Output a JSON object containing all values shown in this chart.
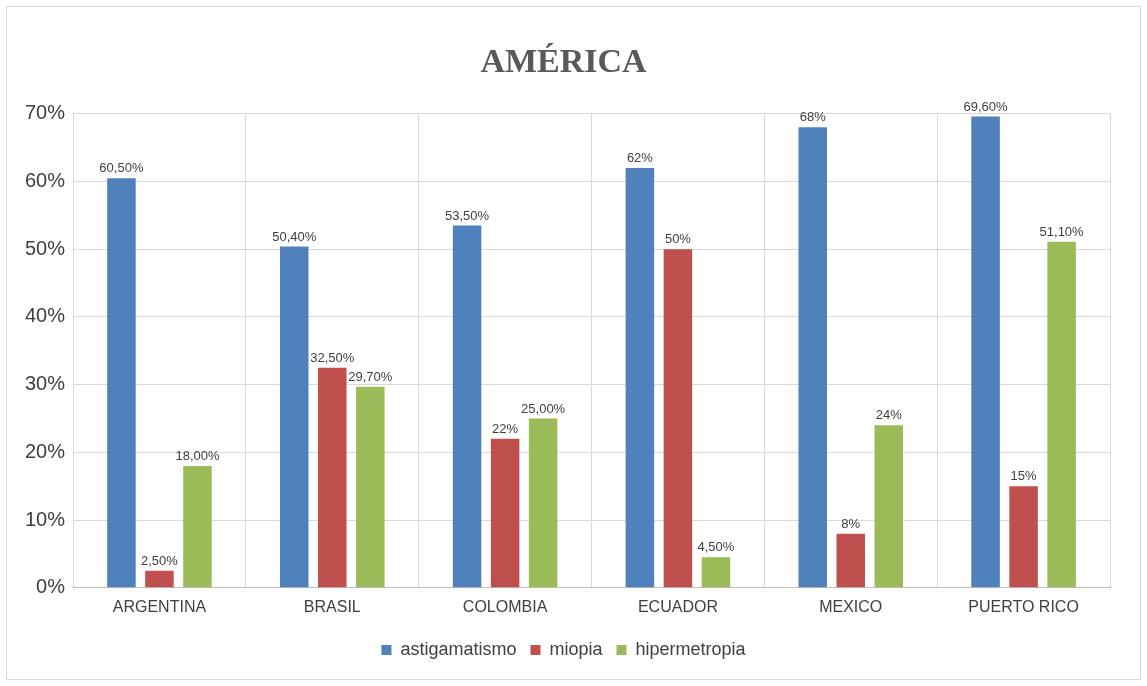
{
  "chart_data": {
    "type": "bar",
    "title": "AMÉRICA",
    "categories": [
      "ARGENTINA",
      "BRASIL",
      "COLOMBIA",
      "ECUADOR",
      "MEXICO",
      "PUERTO RICO"
    ],
    "series": [
      {
        "name": "astigamatismo",
        "color": "#4f81bd",
        "values": [
          60.5,
          50.4,
          53.5,
          62,
          68,
          69.6
        ],
        "value_labels": [
          "60,50%",
          "50,40%",
          "53,50%",
          "62%",
          "68%",
          "69,60%"
        ]
      },
      {
        "name": "miopia",
        "color": "#c0504d",
        "values": [
          2.5,
          32.5,
          22,
          50,
          8,
          15
        ],
        "value_labels": [
          "2,50%",
          "32,50%",
          "22%",
          "50%",
          "8%",
          "15%"
        ]
      },
      {
        "name": "hipermetropia",
        "color": "#9bbb59",
        "values": [
          18,
          29.7,
          25,
          4.5,
          24,
          51.1
        ],
        "value_labels": [
          "18,00%",
          "29,70%",
          "25,00%",
          "4,50%",
          "24%",
          "51,10%"
        ]
      }
    ],
    "ylim": [
      0,
      70
    ],
    "yticks": [
      {
        "value": 0,
        "label": "0%"
      },
      {
        "value": 10,
        "label": "10%"
      },
      {
        "value": 20,
        "label": "20%"
      },
      {
        "value": 30,
        "label": "30%"
      },
      {
        "value": 40,
        "label": "40%"
      },
      {
        "value": 50,
        "label": "50%"
      },
      {
        "value": 60,
        "label": "60%"
      },
      {
        "value": 70,
        "label": "70%"
      }
    ],
    "grid": true,
    "legend": "bottom"
  }
}
